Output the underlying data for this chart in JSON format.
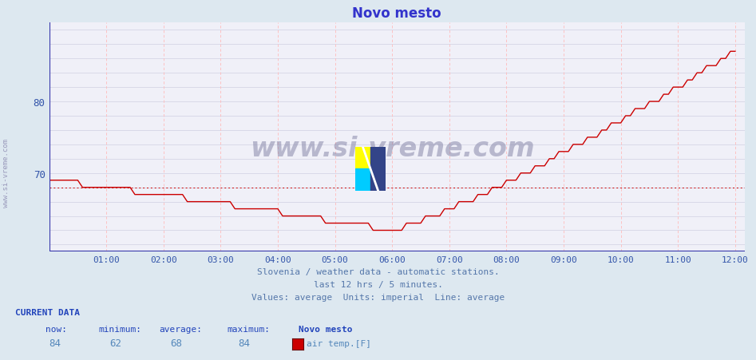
{
  "title": "Novo mesto",
  "title_color": "#3333cc",
  "bg_color": "#dde8f0",
  "plot_bg_color": "#f0f0f8",
  "line_color": "#cc0000",
  "avg_line_color": "#cc0000",
  "axis_color": "#3333aa",
  "tick_color": "#3355aa",
  "grid_h_color": "#c8c8dc",
  "grid_v_color": "#ffbbbb",
  "footer_color": "#5577aa",
  "current_label_color": "#2244bb",
  "current_value_color": "#5588bb",
  "ylim": [
    59,
    91
  ],
  "yticks": [
    70,
    80
  ],
  "ytick_labels": [
    "70",
    "80"
  ],
  "xtick_positions": [
    12,
    24,
    36,
    48,
    60,
    72,
    84,
    96,
    108,
    120,
    132,
    144
  ],
  "xtick_labels": [
    "01:00",
    "02:00",
    "03:00",
    "04:00",
    "05:00",
    "06:00",
    "07:00",
    "08:00",
    "09:00",
    "10:00",
    "11:00",
    "12:00"
  ],
  "n_points": 145,
  "avg_value": 68,
  "now": 84,
  "minimum": 62,
  "average": 68,
  "maximum": 84,
  "station": "Novo mesto",
  "legend_label": "air temp.[F]",
  "footer_line1": "Slovenia / weather data - automatic stations.",
  "footer_line2": "last 12 hrs / 5 minutes.",
  "footer_line3": "Values: average  Units: imperial  Line: average",
  "watermark": "www.si-vreme.com",
  "side_label": "www.si-vreme.com",
  "figsize": [
    9.47,
    4.52
  ],
  "dpi": 100
}
